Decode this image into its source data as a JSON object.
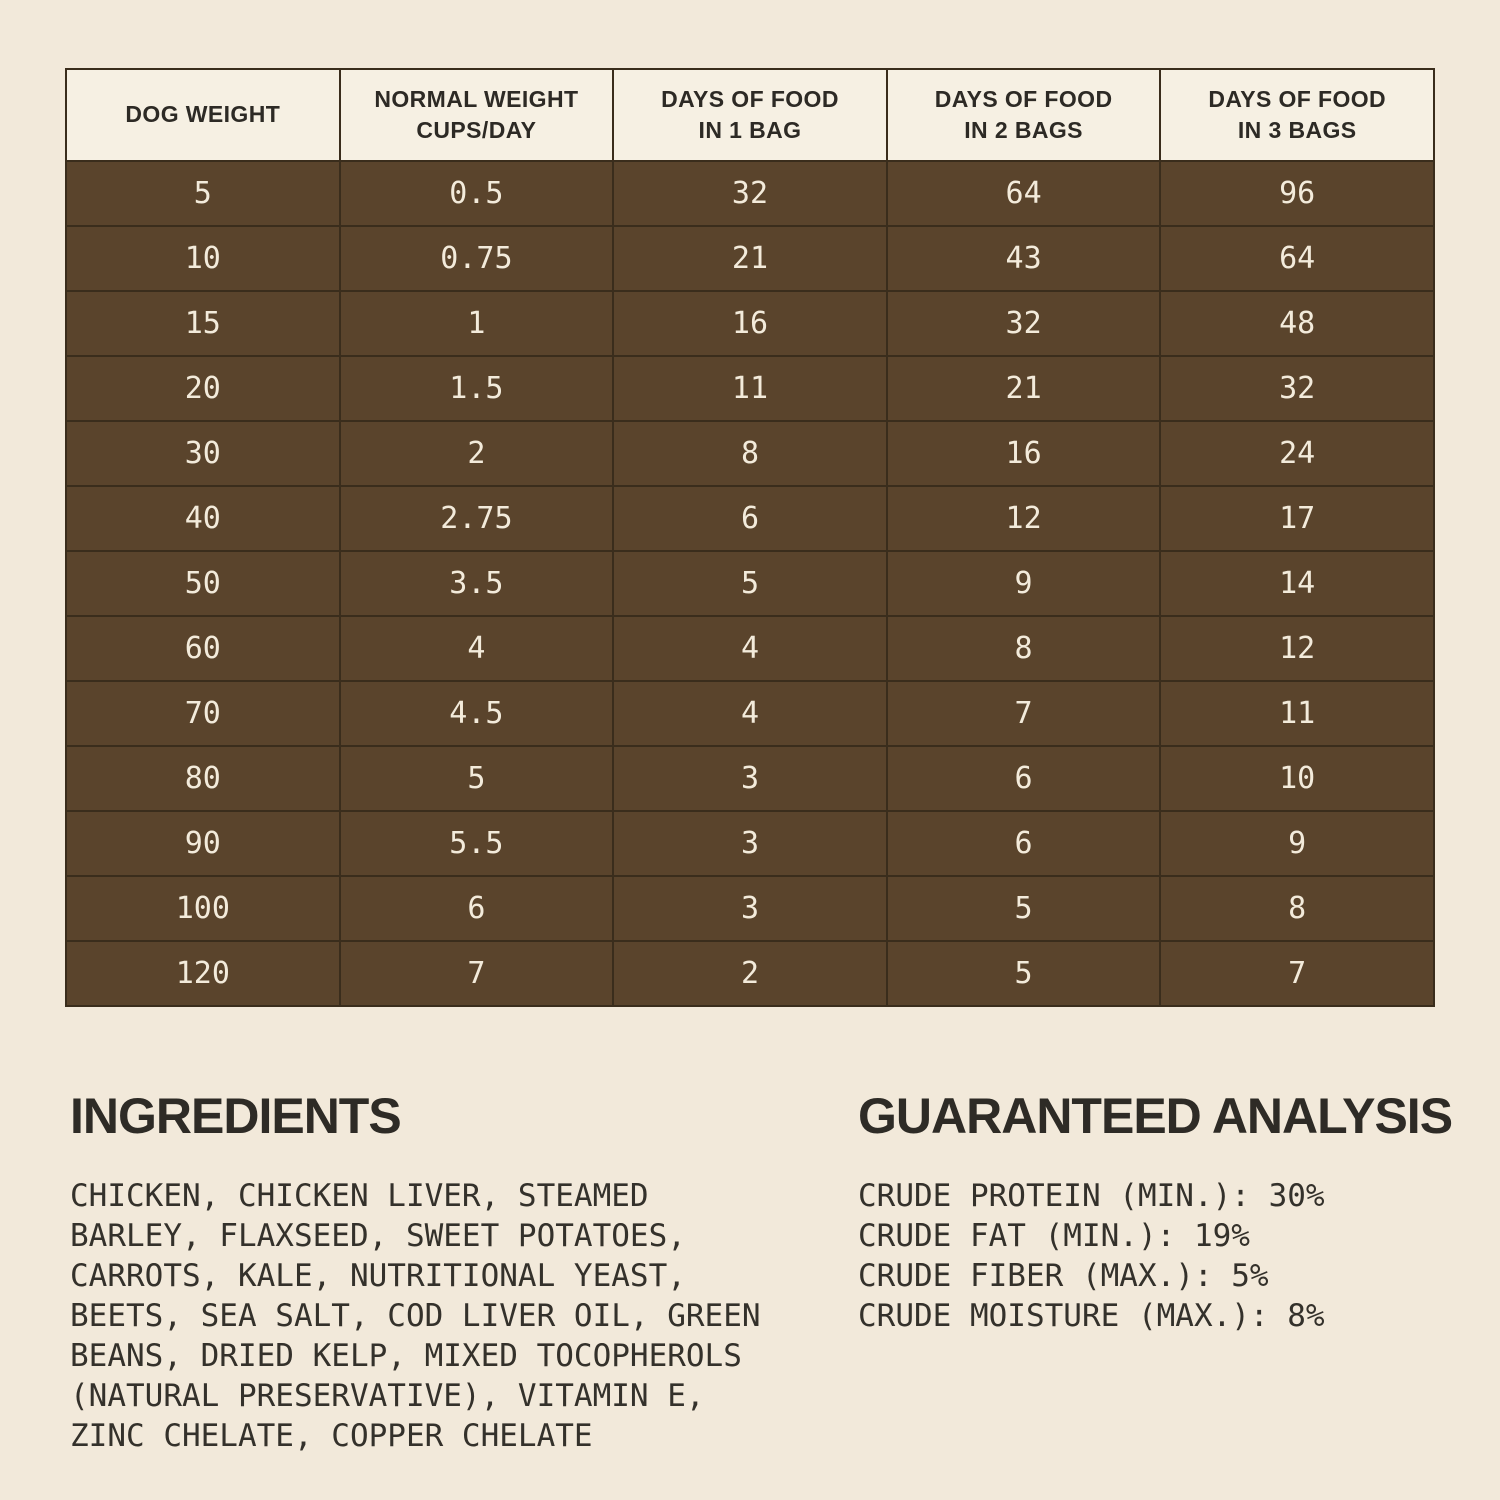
{
  "colors": {
    "page_bg": "#f2e9da",
    "table_header_bg": "#f6f0e3",
    "table_cell_bg": "#5a442c",
    "table_border": "#3a2d1c",
    "table_header_text": "#2d2a25",
    "table_cell_text": "#f3ebdb",
    "body_text": "#34312b"
  },
  "feeding_table": {
    "columns": [
      "DOG WEIGHT",
      "NORMAL WEIGHT\nCUPS/DAY",
      "DAYS OF FOOD\nIN 1 BAG",
      "DAYS OF FOOD\nIN 2 BAGS",
      "DAYS OF FOOD\nIN 3 BAGS"
    ],
    "rows": [
      [
        "5",
        "0.5",
        "32",
        "64",
        "96"
      ],
      [
        "10",
        "0.75",
        "21",
        "43",
        "64"
      ],
      [
        "15",
        "1",
        "16",
        "32",
        "48"
      ],
      [
        "20",
        "1.5",
        "11",
        "21",
        "32"
      ],
      [
        "30",
        "2",
        "8",
        "16",
        "24"
      ],
      [
        "40",
        "2.75",
        "6",
        "12",
        "17"
      ],
      [
        "50",
        "3.5",
        "5",
        "9",
        "14"
      ],
      [
        "60",
        "4",
        "4",
        "8",
        "12"
      ],
      [
        "70",
        "4.5",
        "4",
        "7",
        "11"
      ],
      [
        "80",
        "5",
        "3",
        "6",
        "10"
      ],
      [
        "90",
        "5.5",
        "3",
        "6",
        "9"
      ],
      [
        "100",
        "6",
        "3",
        "5",
        "8"
      ],
      [
        "120",
        "7",
        "2",
        "5",
        "7"
      ]
    ]
  },
  "ingredients": {
    "title": "INGREDIENTS",
    "text": "CHICKEN, CHICKEN LIVER, STEAMED BARLEY, FLAXSEED, SWEET POTATOES, CARROTS, KALE, NUTRITIONAL YEAST, BEETS, SEA SALT, COD LIVER OIL, GREEN BEANS, DRIED KELP, MIXED TOCOPHEROLS (NATURAL PRESERVATIVE), VITAMIN E, ZINC CHELATE, COPPER CHELATE"
  },
  "guaranteed_analysis": {
    "title": "GUARANTEED ANALYSIS",
    "items": [
      "CRUDE PROTEIN (MIN.): 30%",
      "CRUDE FAT (MIN.): 19%",
      "CRUDE FIBER (MAX.): 5%",
      "CRUDE MOISTURE (MAX.): 8%"
    ]
  }
}
